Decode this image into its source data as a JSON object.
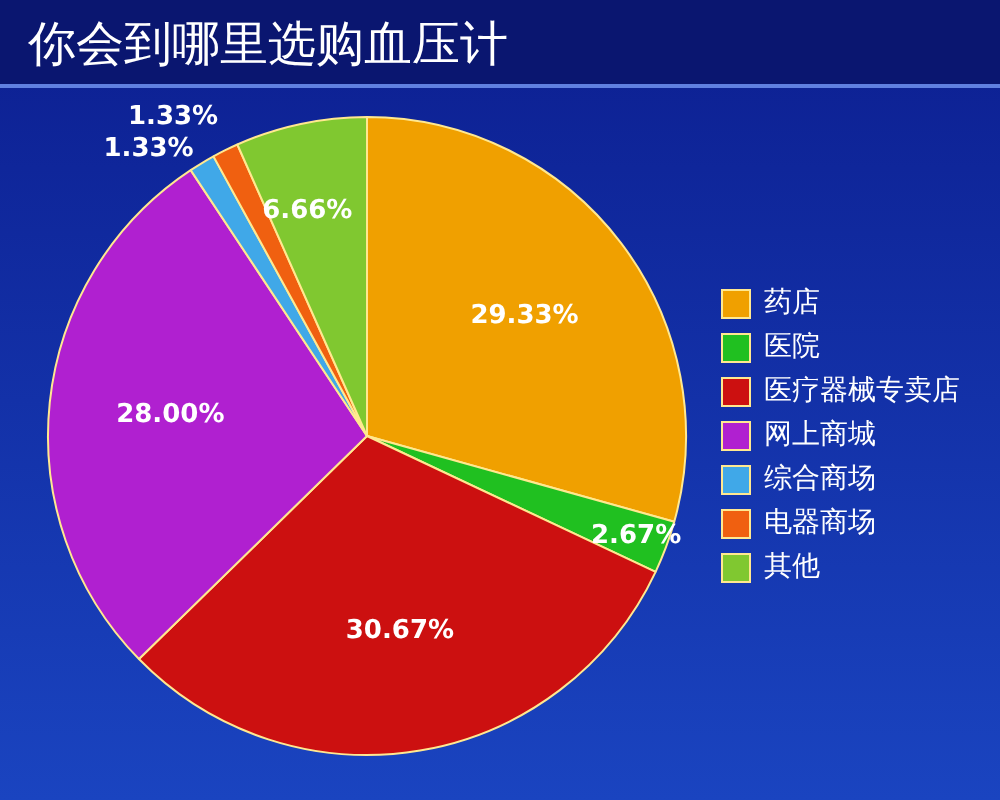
{
  "chart_data": {
    "type": "pie",
    "title": "你会到哪里选购血压计",
    "categories": [
      "药店",
      "医院",
      "医疗器械专卖店",
      "网上商城",
      "综合商场",
      "电器商场",
      "其他"
    ],
    "values": [
      29.33,
      2.67,
      30.67,
      28.0,
      1.33,
      1.33,
      6.66
    ],
    "value_labels": [
      "29.33%",
      "2.67%",
      "30.67%",
      "28.00%",
      "1.33%",
      "1.33%",
      "6.66%"
    ],
    "colors": [
      "#f0a000",
      "#20c020",
      "#cc1010",
      "#b020d0",
      "#40a8e8",
      "#f06010",
      "#80c830"
    ],
    "legend": "right"
  }
}
